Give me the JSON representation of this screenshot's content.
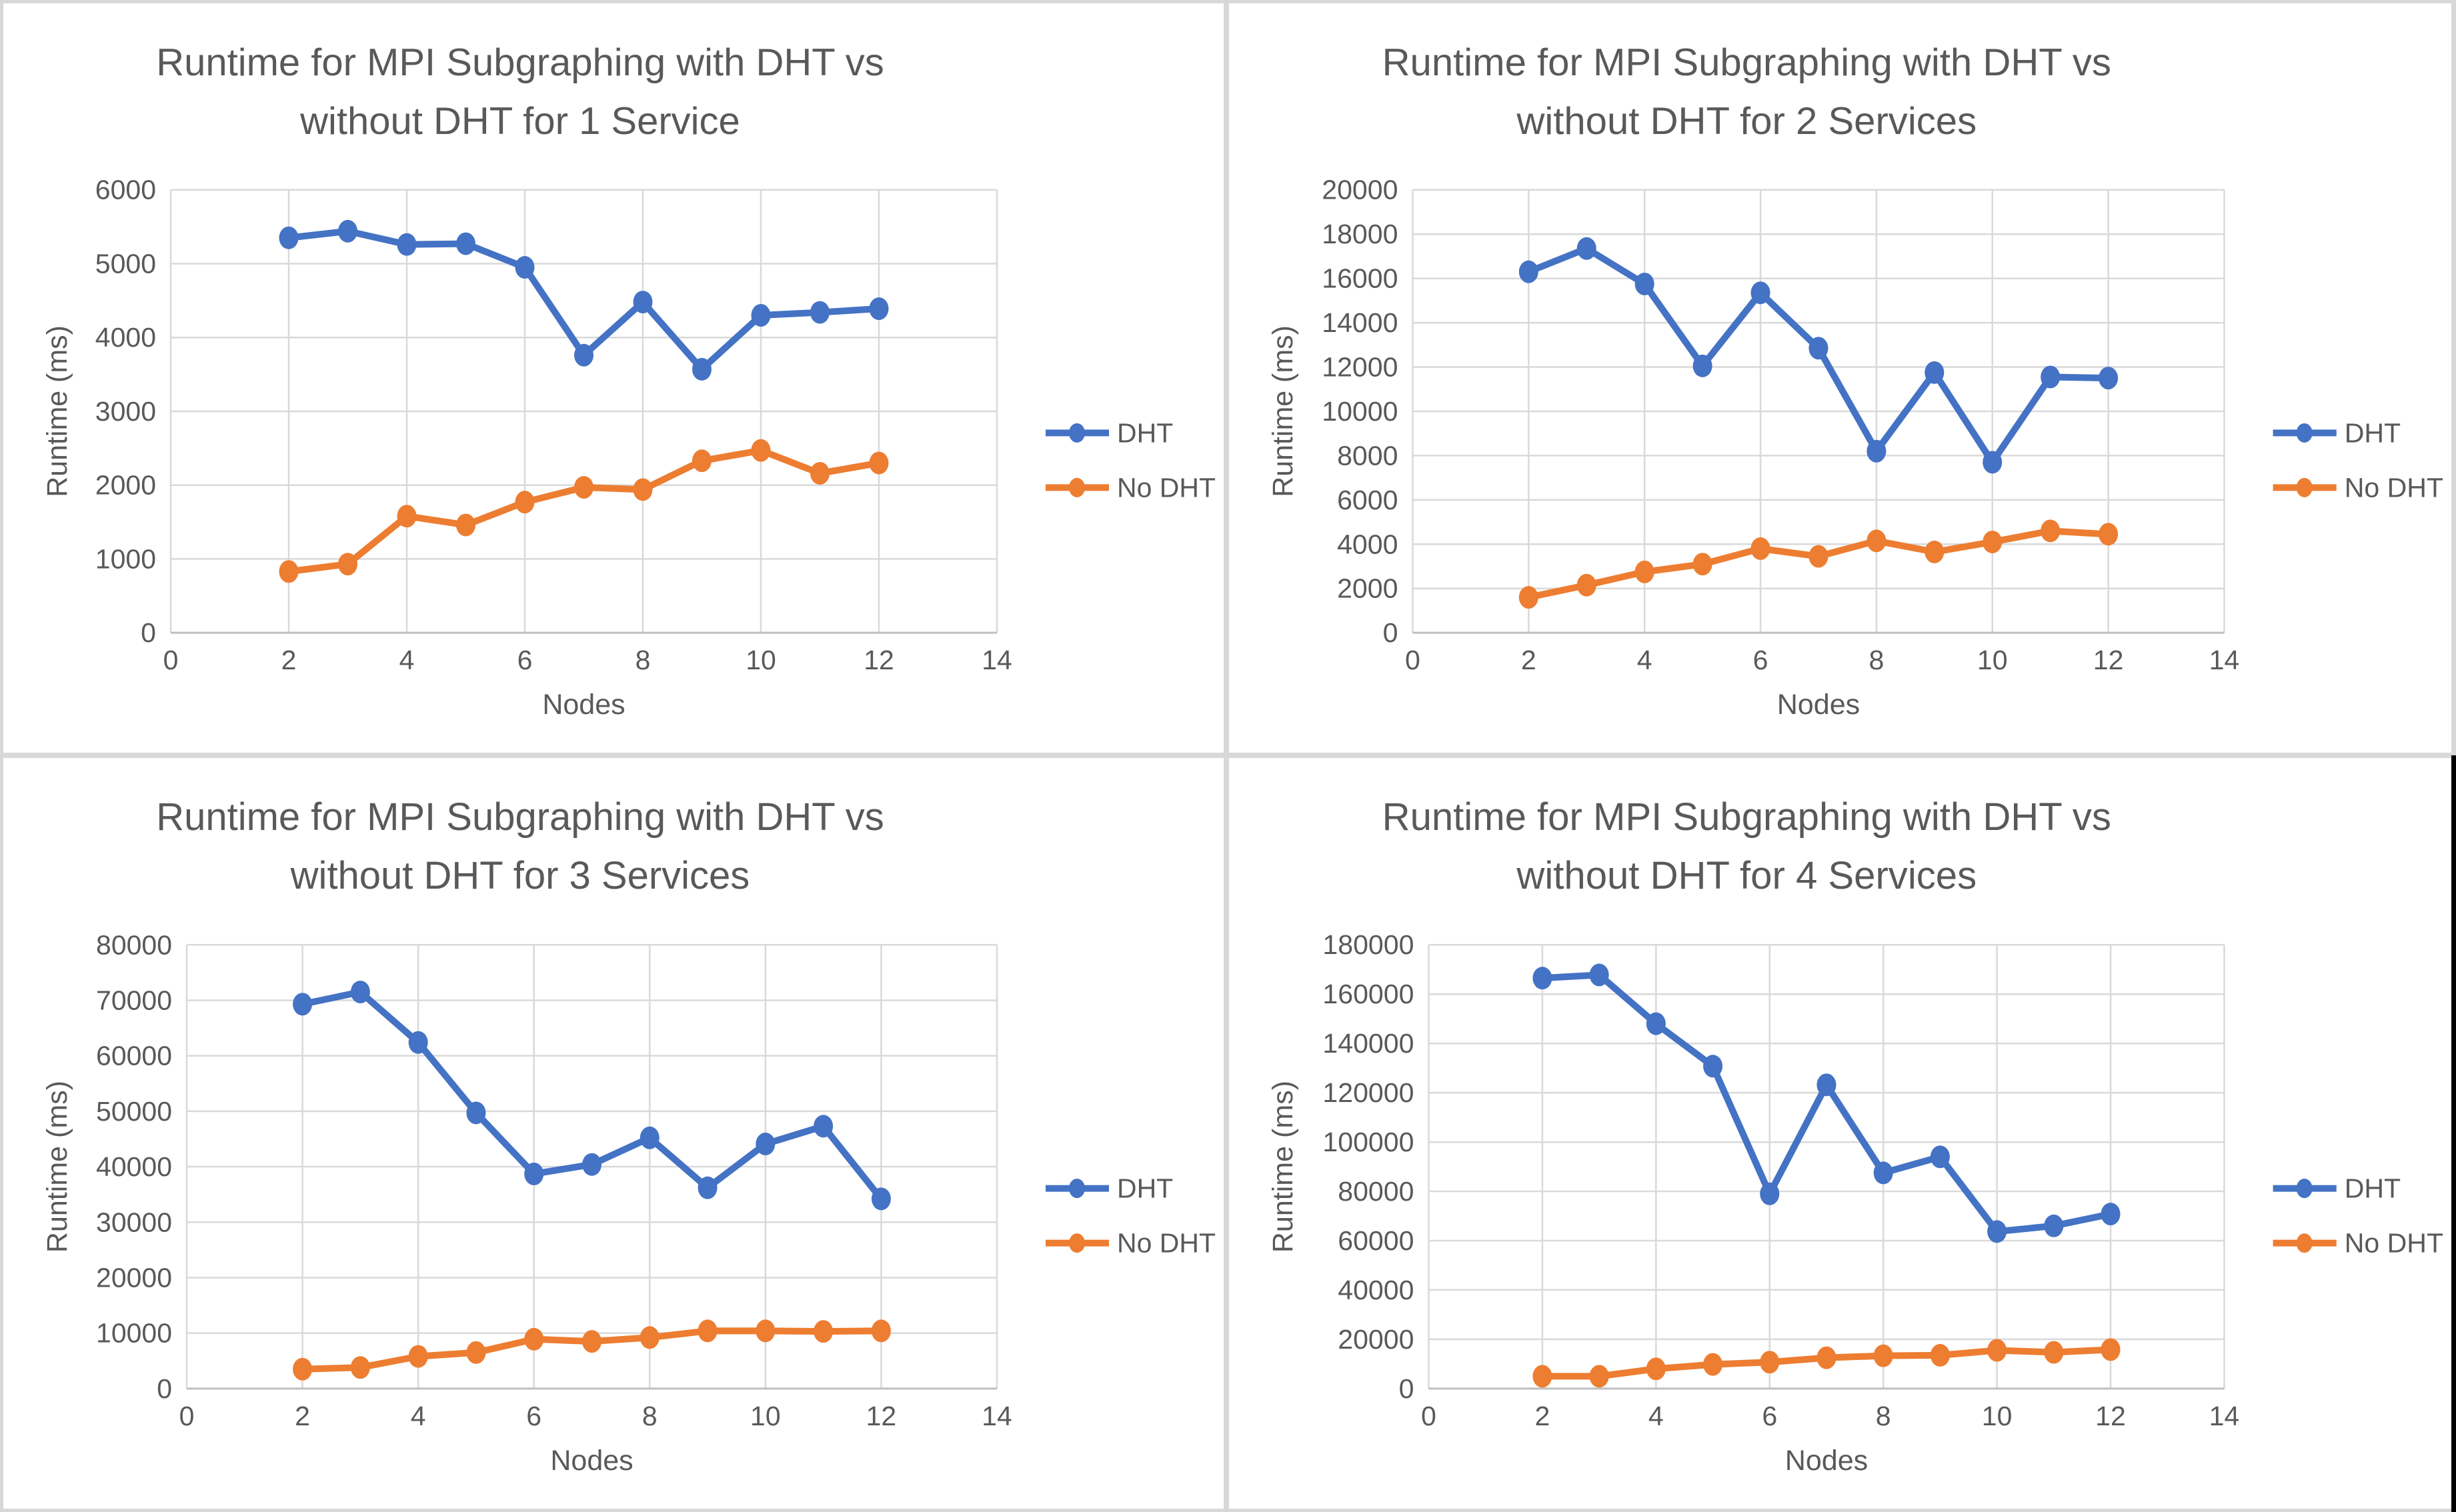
{
  "page": {
    "background": "#d8d8d8",
    "panel_background": "#ffffff",
    "edge_strip_color": "#000000"
  },
  "colors": {
    "dht": "#4472C4",
    "no_dht": "#ED7D31",
    "text": "#595959",
    "gridline": "#D9D9D9",
    "axis_line": "#BFBFBF"
  },
  "chart_data": [
    {
      "type": "line",
      "title_line1": "Runtime for MPI Subgraphing with DHT vs",
      "title_line2": "without DHT for 1 Service",
      "xlabel": "Nodes",
      "ylabel": "Runtime (ms)",
      "xlim": [
        0,
        14
      ],
      "x_ticks": [
        0,
        2,
        4,
        6,
        8,
        10,
        12,
        14
      ],
      "ylim": [
        0,
        6000
      ],
      "y_tick_step": 1000,
      "grid": true,
      "legend_position": "right",
      "x": [
        2,
        3,
        4,
        5,
        6,
        7,
        8,
        9,
        10,
        11,
        12
      ],
      "series": [
        {
          "name": "DHT",
          "color_key": "dht",
          "values": [
            5350,
            5440,
            5260,
            5270,
            4950,
            3760,
            4480,
            3570,
            4300,
            4340,
            4390
          ]
        },
        {
          "name": "No DHT",
          "color_key": "no_dht",
          "values": [
            830,
            930,
            1580,
            1460,
            1770,
            1970,
            1940,
            2330,
            2470,
            2160,
            2300
          ]
        }
      ]
    },
    {
      "type": "line",
      "title_line1": "Runtime for MPI Subgraphing with DHT vs",
      "title_line2": "without DHT for 2 Services",
      "xlabel": "Nodes",
      "ylabel": "Runtime (ms)",
      "xlim": [
        0,
        14
      ],
      "x_ticks": [
        0,
        2,
        4,
        6,
        8,
        10,
        12,
        14
      ],
      "ylim": [
        0,
        20000
      ],
      "y_tick_step": 2000,
      "grid": true,
      "legend_position": "right",
      "x": [
        2,
        3,
        4,
        5,
        6,
        7,
        8,
        9,
        10,
        11,
        12
      ],
      "series": [
        {
          "name": "DHT",
          "color_key": "dht",
          "values": [
            16300,
            17350,
            15750,
            12050,
            15350,
            12850,
            8200,
            11750,
            7700,
            11550,
            11500
          ]
        },
        {
          "name": "No DHT",
          "color_key": "no_dht",
          "values": [
            1600,
            2150,
            2750,
            3100,
            3800,
            3450,
            4150,
            3650,
            4100,
            4600,
            4450
          ]
        }
      ]
    },
    {
      "type": "line",
      "title_line1": "Runtime for MPI Subgraphing with DHT vs",
      "title_line2": "without DHT for 3 Services",
      "xlabel": "Nodes",
      "ylabel": "Runtime (ms)",
      "xlim": [
        0,
        14
      ],
      "x_ticks": [
        0,
        2,
        4,
        6,
        8,
        10,
        12,
        14
      ],
      "ylim": [
        0,
        80000
      ],
      "y_tick_step": 10000,
      "grid": true,
      "legend_position": "right",
      "x": [
        2,
        3,
        4,
        5,
        6,
        7,
        8,
        9,
        10,
        11,
        12
      ],
      "series": [
        {
          "name": "DHT",
          "color_key": "dht",
          "values": [
            69300,
            71500,
            62400,
            49700,
            38700,
            40400,
            45200,
            36200,
            44100,
            47300,
            34200
          ]
        },
        {
          "name": "No DHT",
          "color_key": "no_dht",
          "values": [
            3500,
            3800,
            5800,
            6500,
            8900,
            8500,
            9200,
            10400,
            10400,
            10300,
            10400
          ]
        }
      ]
    },
    {
      "type": "line",
      "title_line1": "Runtime for MPI Subgraphing with DHT vs",
      "title_line2": "without DHT for 4 Services",
      "xlabel": "Nodes",
      "ylabel": "Runtime (ms)",
      "xlim": [
        0,
        14
      ],
      "x_ticks": [
        0,
        2,
        4,
        6,
        8,
        10,
        12,
        14
      ],
      "ylim": [
        0,
        180000
      ],
      "y_tick_step": 20000,
      "grid": true,
      "legend_position": "right",
      "x": [
        2,
        3,
        4,
        5,
        6,
        7,
        8,
        9,
        10,
        11,
        12
      ],
      "series": [
        {
          "name": "DHT",
          "color_key": "dht",
          "values": [
            166500,
            167800,
            148000,
            130800,
            79000,
            123200,
            87500,
            94000,
            63700,
            66000,
            70800
          ]
        },
        {
          "name": "No DHT",
          "color_key": "no_dht",
          "values": [
            5000,
            5000,
            8000,
            9800,
            10700,
            12500,
            13300,
            13500,
            15500,
            14700,
            15800
          ]
        }
      ]
    }
  ]
}
